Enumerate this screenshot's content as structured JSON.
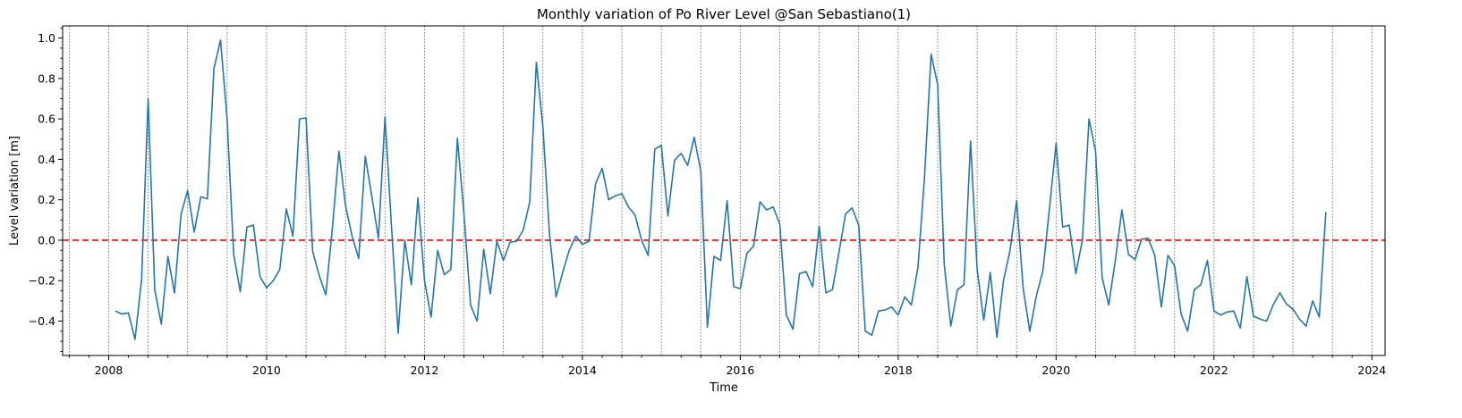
{
  "chart_data": {
    "type": "line",
    "title": "Monthly variation of Po River Level @San Sebastiano(1)",
    "xlabel": "Time",
    "ylabel": "Level variation [m]",
    "xlim": [
      "2007-06-01",
      "2024-03-01"
    ],
    "ylim": [
      -0.57,
      1.06
    ],
    "x_ticks": [
      "2008",
      "2010",
      "2012",
      "2014",
      "2016",
      "2018",
      "2020",
      "2022",
      "2024"
    ],
    "y_ticks": [
      "-0.4",
      "-0.2",
      "0.0",
      "0.2",
      "0.4",
      "0.6",
      "0.8",
      "1.0"
    ],
    "grid": "vertical dotted lines at Jan and Jul of each year",
    "reference_line": {
      "y": 0.0,
      "color": "#ff0000",
      "style": "dashed"
    },
    "series": [
      {
        "color": "#1f77b4",
        "start": "2008-02",
        "step": "monthly",
        "values": [
          -0.35,
          -0.365,
          -0.36,
          -0.49,
          -0.195,
          0.7,
          -0.245,
          -0.415,
          -0.08,
          -0.26,
          0.13,
          0.245,
          0.04,
          0.215,
          0.205,
          0.85,
          0.99,
          0.6,
          -0.07,
          -0.255,
          0.065,
          0.075,
          -0.18,
          -0.235,
          -0.2,
          -0.145,
          0.155,
          0.02,
          0.6,
          0.605,
          -0.055,
          -0.175,
          -0.27,
          0.06,
          0.44,
          0.17,
          0.02,
          -0.09,
          0.415,
          0.215,
          0.01,
          0.61,
          0.06,
          -0.46,
          0.0,
          -0.22,
          0.21,
          -0.2,
          -0.38,
          -0.05,
          -0.17,
          -0.145,
          0.505,
          0.13,
          -0.32,
          -0.4,
          -0.045,
          -0.265,
          -0.005,
          -0.1,
          -0.01,
          -0.005,
          0.05,
          0.19,
          0.88,
          0.56,
          0.03,
          -0.28,
          -0.16,
          -0.05,
          0.02,
          -0.02,
          -0.005,
          0.28,
          0.355,
          0.2,
          0.22,
          0.23,
          0.165,
          0.125,
          0.0,
          -0.075,
          0.45,
          0.47,
          0.12,
          0.395,
          0.43,
          0.37,
          0.51,
          0.34,
          -0.43,
          -0.08,
          -0.1,
          0.195,
          -0.23,
          -0.24,
          -0.065,
          -0.03,
          0.19,
          0.15,
          0.165,
          0.08,
          -0.37,
          -0.44,
          -0.165,
          -0.155,
          -0.23,
          0.07,
          -0.26,
          -0.245,
          -0.06,
          0.13,
          0.16,
          0.075,
          -0.45,
          -0.47,
          -0.35,
          -0.345,
          -0.33,
          -0.37,
          -0.28,
          -0.32,
          -0.135,
          0.31,
          0.92,
          0.77,
          -0.12,
          -0.425,
          -0.245,
          -0.22,
          0.49,
          -0.145,
          -0.395,
          -0.16,
          -0.48,
          -0.2,
          -0.05,
          0.195,
          -0.24,
          -0.45,
          -0.275,
          -0.15,
          0.16,
          0.48,
          0.065,
          0.075,
          -0.165,
          0.0,
          0.6,
          0.44,
          -0.185,
          -0.32,
          -0.1,
          0.15,
          -0.07,
          -0.095,
          0.005,
          0.01,
          -0.075,
          -0.33,
          -0.075,
          -0.125,
          -0.365,
          -0.45,
          -0.245,
          -0.22,
          -0.1,
          -0.35,
          -0.37,
          -0.355,
          -0.35,
          -0.435,
          -0.18,
          -0.375,
          -0.39,
          -0.4,
          -0.32,
          -0.26,
          -0.315,
          -0.34,
          -0.39,
          -0.425,
          -0.3,
          -0.38,
          0.14
        ]
      }
    ]
  }
}
